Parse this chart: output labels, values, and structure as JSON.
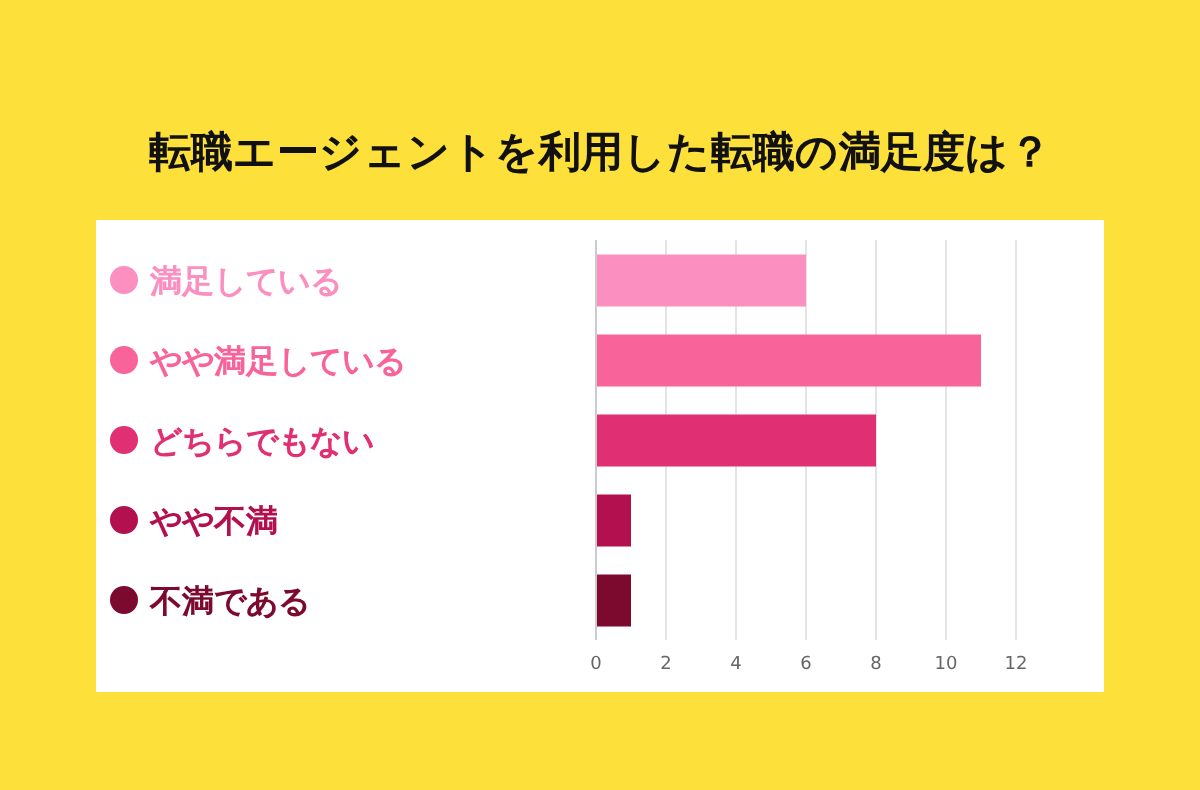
{
  "chart_data": {
    "type": "bar",
    "orientation": "horizontal",
    "title": "転職エージェントを利用した転職の満足度は？",
    "categories": [
      "満足している",
      "やや満足している",
      "どちらでもない",
      "やや不満",
      "不満である"
    ],
    "values": [
      6,
      11,
      8,
      1,
      1
    ],
    "colors": [
      "#fb8fc0",
      "#f8649a",
      "#e02f72",
      "#b3104f",
      "#7c0a2e"
    ],
    "xlim": [
      0,
      12
    ],
    "xticks": [
      0,
      2,
      4,
      6,
      8,
      10,
      12
    ],
    "grid": "x"
  }
}
